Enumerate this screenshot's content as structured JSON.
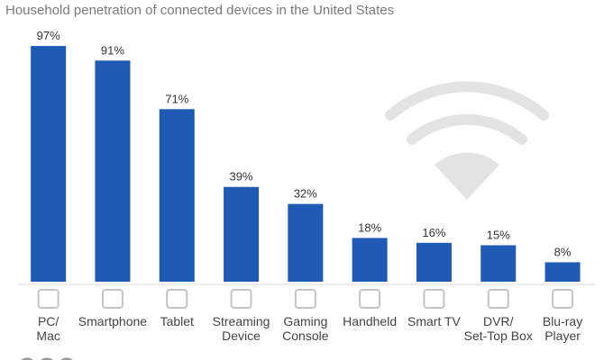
{
  "chart_data": {
    "type": "bar",
    "title": "Household penetration of connected devices in the United States",
    "categories": [
      "PC/\nMac",
      "Smartphone",
      "Tablet",
      "Streaming\nDevice",
      "Gaming\nConsole",
      "Handheld",
      "Smart TV",
      "DVR/\nSet-Top Box",
      "Blu-ray\nPlayer"
    ],
    "values": [
      97,
      91,
      71,
      39,
      32,
      18,
      16,
      15,
      8
    ],
    "value_labels": [
      "97%",
      "91%",
      "71%",
      "39%",
      "32%",
      "18%",
      "16%",
      "15%",
      "8%"
    ],
    "color": "#1f5bb5"
  }
}
